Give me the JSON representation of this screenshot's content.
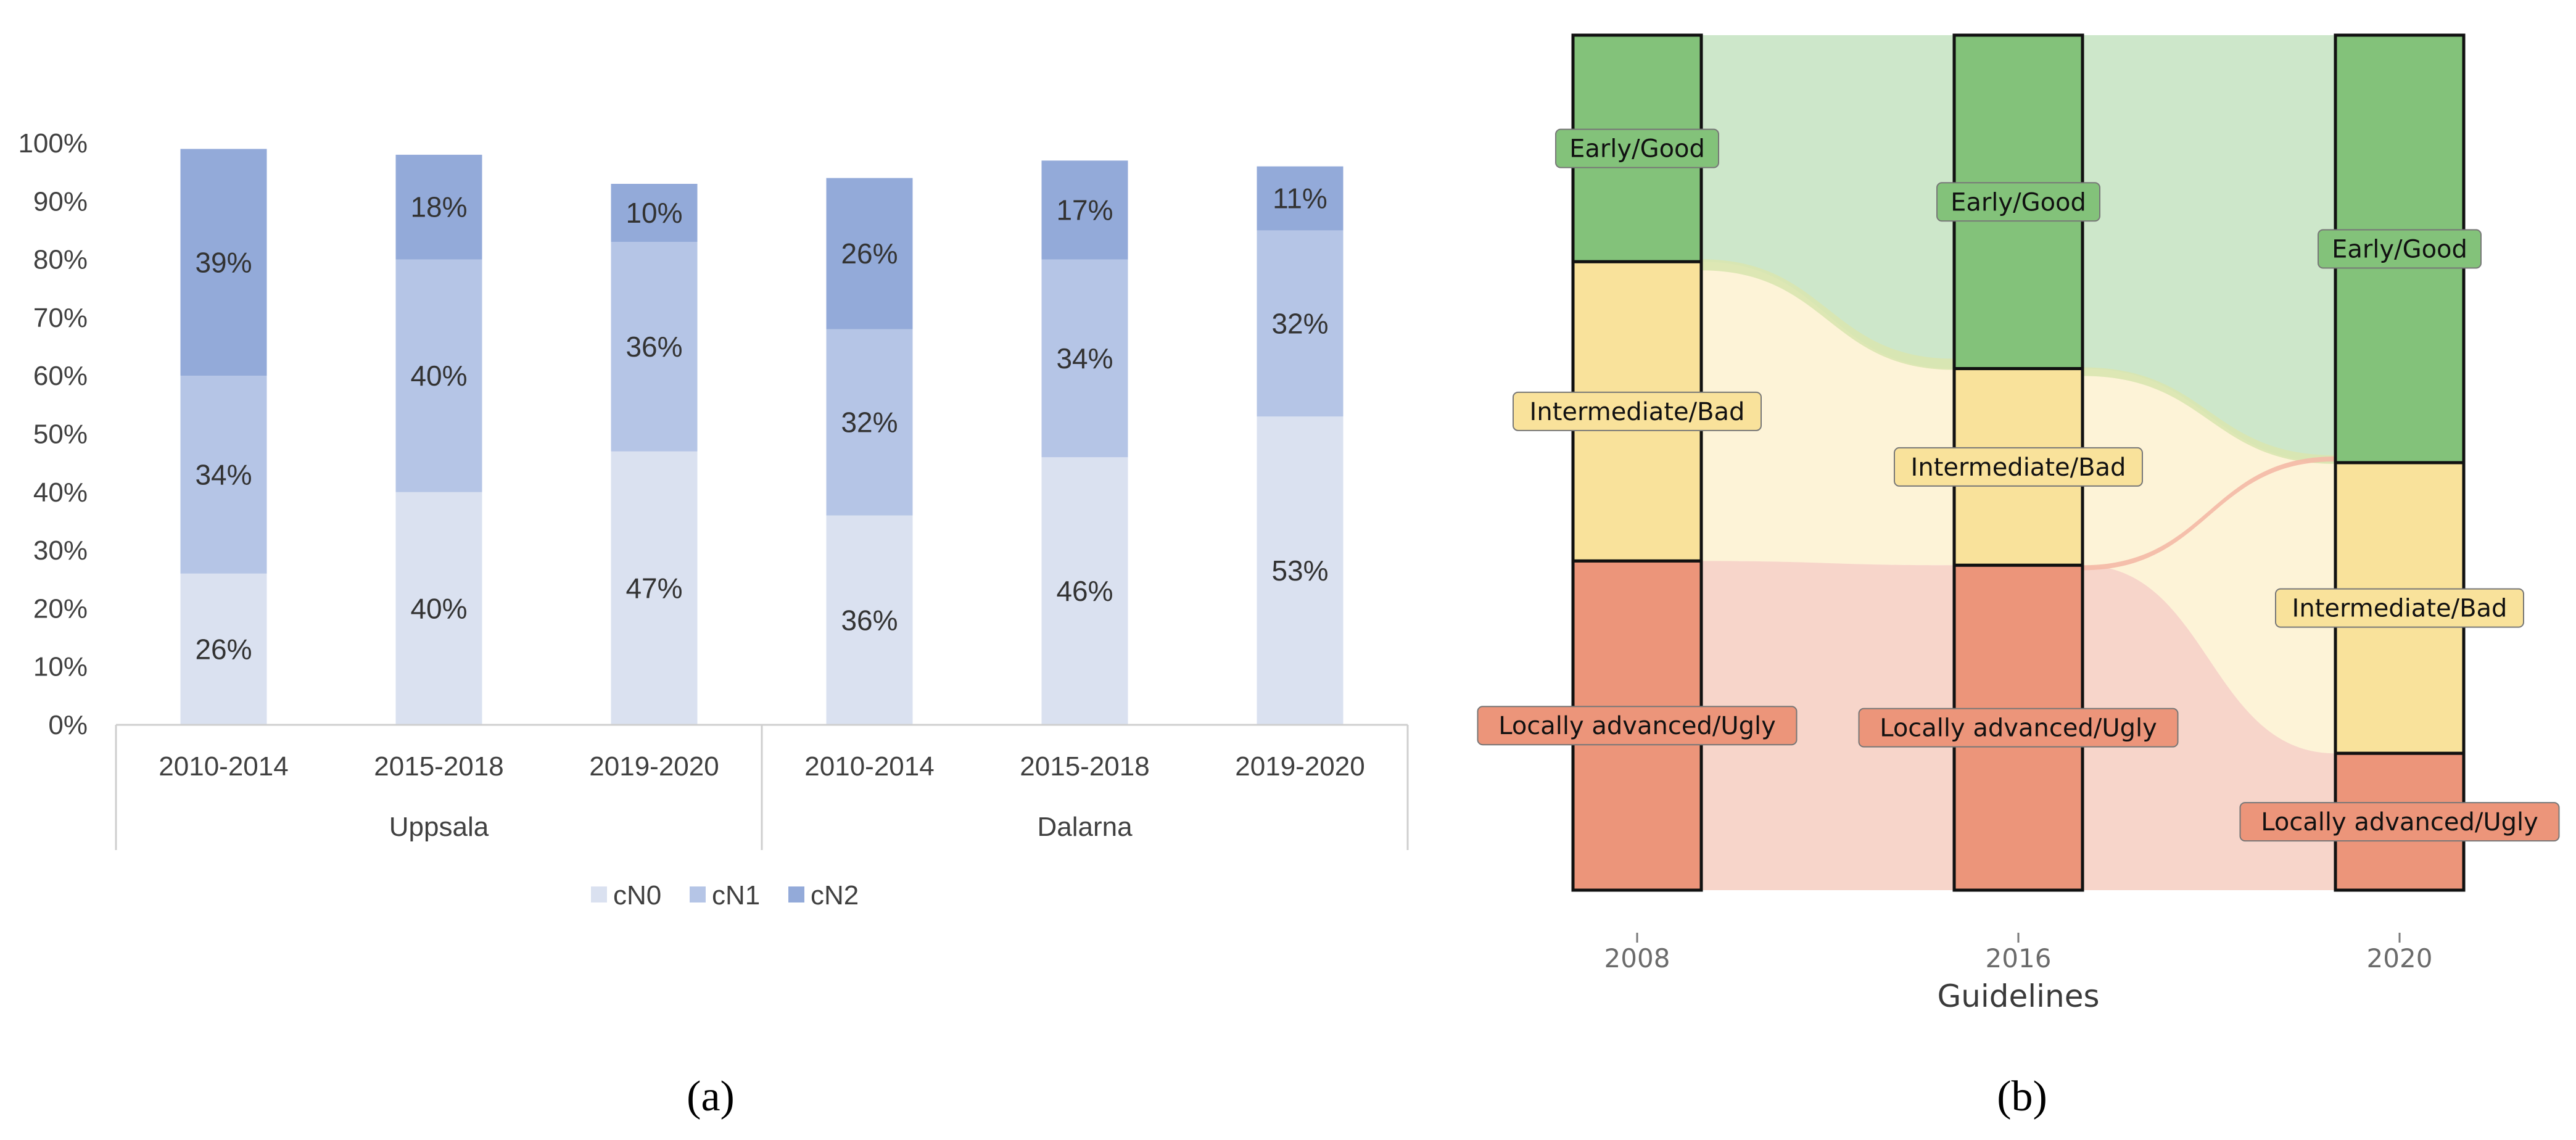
{
  "chart_data": [
    {
      "type": "bar",
      "stacked": true,
      "panel_label": "(a)",
      "ylim": [
        0,
        100
      ],
      "yticks": [
        "0%",
        "10%",
        "20%",
        "30%",
        "40%",
        "50%",
        "60%",
        "70%",
        "80%",
        "90%",
        "100%"
      ],
      "groups": [
        {
          "name": "Uppsala",
          "categories": [
            "2010-2014",
            "2015-2018",
            "2019-2020"
          ]
        },
        {
          "name": "Dalarna",
          "categories": [
            "2010-2014",
            "2015-2018",
            "2019-2020"
          ]
        }
      ],
      "series": [
        {
          "name": "cN0",
          "color": "#dae1f0",
          "values": [
            26,
            40,
            47,
            36,
            46,
            53
          ],
          "labels": [
            "26%",
            "40%",
            "47%",
            "36%",
            "46%",
            "53%"
          ]
        },
        {
          "name": "cN1",
          "color": "#b5c5e6",
          "values": [
            34,
            40,
            36,
            32,
            34,
            32
          ],
          "labels": [
            "34%",
            "40%",
            "36%",
            "32%",
            "34%",
            "32%"
          ]
        },
        {
          "name": "cN2",
          "color": "#93aad9",
          "values": [
            39,
            18,
            10,
            26,
            17,
            11
          ],
          "labels": [
            "39%",
            "18%",
            "10%",
            "26%",
            "17%",
            "11%"
          ]
        }
      ],
      "legend": "bottom"
    },
    {
      "type": "alluvial",
      "panel_label": "(b)",
      "xlabel": "Guidelines",
      "axes": [
        "2008",
        "2016",
        "2020"
      ],
      "categories": [
        {
          "name": "Early/Good",
          "color": "#83c27a"
        },
        {
          "name": "Intermediate/Bad",
          "color": "#f9e29b"
        },
        {
          "name": "Locally advanced/Ugly",
          "color": "#ec957a"
        }
      ],
      "proportions": [
        [
          0.265,
          0.35,
          0.385
        ],
        [
          0.39,
          0.23,
          0.38
        ],
        [
          0.5,
          0.34,
          0.16
        ]
      ]
    }
  ]
}
